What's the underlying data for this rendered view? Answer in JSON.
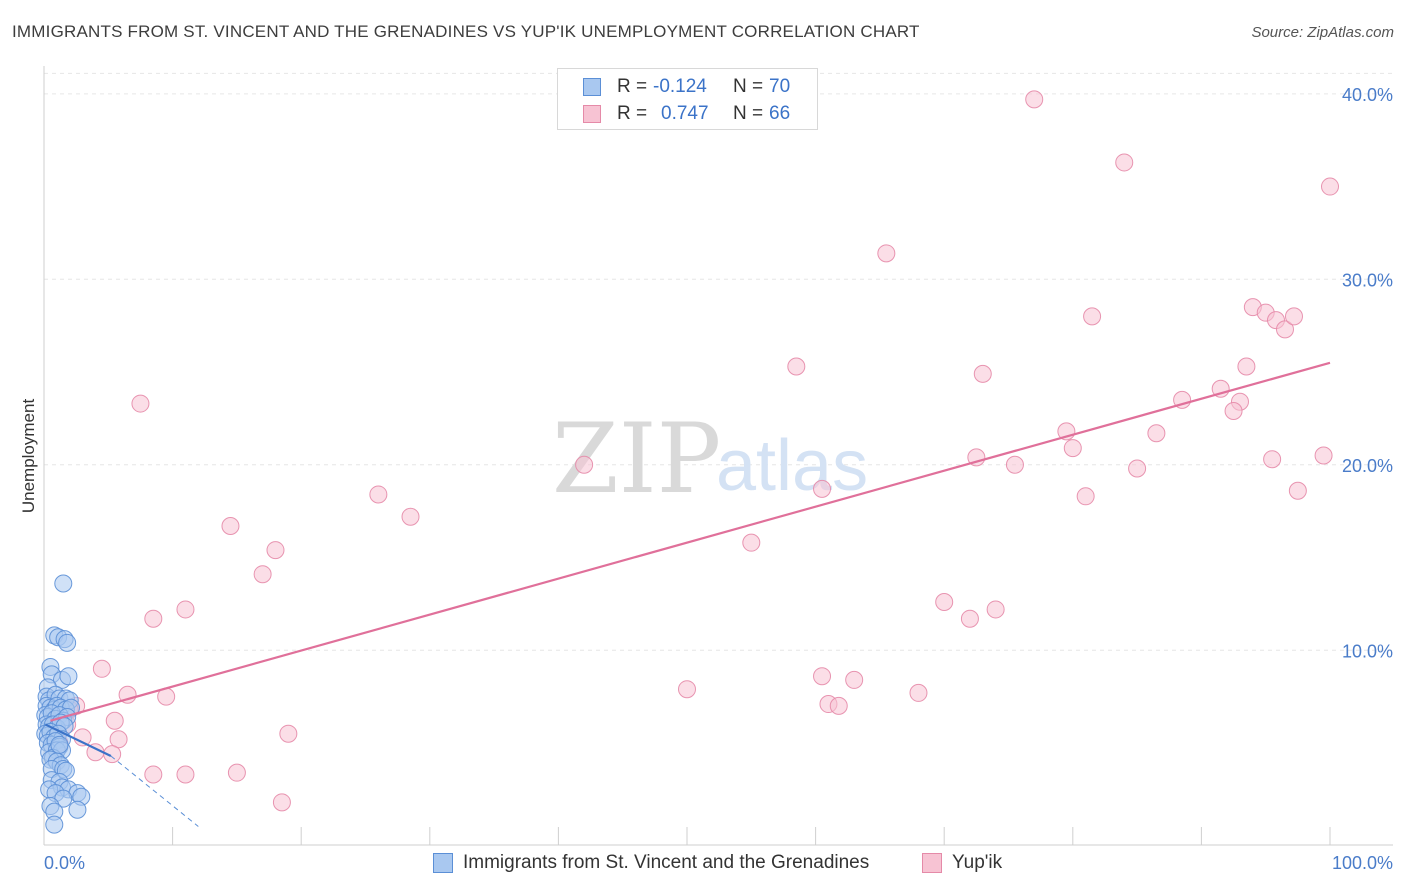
{
  "header": {
    "title": "IMMIGRANTS FROM ST. VINCENT AND THE GRENADINES VS YUP'IK UNEMPLOYMENT CORRELATION CHART",
    "source": "Source: ZipAtlas.com"
  },
  "watermark": {
    "part1": "ZIP",
    "part2": "atlas"
  },
  "legend": {
    "series1": {
      "r_label": "R =",
      "r_value": "-0.124",
      "n_label": "N =",
      "n_value": "70"
    },
    "series2": {
      "r_label": "R =",
      "r_value": "0.747",
      "n_label": "N =",
      "n_value": "66"
    }
  },
  "colors": {
    "blue_fill": "#a9c8f0",
    "blue_stroke": "#5b8fd6",
    "blue_line": "#3b73c8",
    "pink_fill": "#f7c3d3",
    "pink_stroke": "#e58aa8",
    "pink_line": "#e0709a",
    "grid": "#e6e6e6",
    "axis_text": "#4a7cc9"
  },
  "chart_data": {
    "type": "scatter",
    "title": "IMMIGRANTS FROM ST. VINCENT AND THE GRENADINES VS YUP'IK UNEMPLOYMENT CORRELATION CHART",
    "xlabel": "",
    "ylabel": "Unemployment",
    "xlim": [
      0,
      100
    ],
    "ylim": [
      -0.5,
      41.5
    ],
    "x_tick_labels": {
      "left": "0.0%",
      "right": "100.0%"
    },
    "y_ticks": [
      {
        "value": 10,
        "label": "10.0%"
      },
      {
        "value": 20,
        "label": "20.0%"
      },
      {
        "value": 30,
        "label": "30.0%"
      },
      {
        "value": 40,
        "label": "40.0%"
      }
    ],
    "series": [
      {
        "name": "Immigrants from St. Vincent and the Grenadines",
        "color": "blue",
        "trend": {
          "x0": 0.1,
          "y0": 6.0,
          "x1": 5.2,
          "y1": 4.3,
          "dash_to_x": 12.0,
          "dash_to_y": 0.5
        },
        "points": [
          [
            1.5,
            13.6
          ],
          [
            0.8,
            10.8
          ],
          [
            1.1,
            10.7
          ],
          [
            1.6,
            10.6
          ],
          [
            1.8,
            10.4
          ],
          [
            0.5,
            9.1
          ],
          [
            0.6,
            8.7
          ],
          [
            1.4,
            8.4
          ],
          [
            1.9,
            8.6
          ],
          [
            0.3,
            8.0
          ],
          [
            0.2,
            7.5
          ],
          [
            0.4,
            7.3
          ],
          [
            0.9,
            7.6
          ],
          [
            1.2,
            7.4
          ],
          [
            1.7,
            7.4
          ],
          [
            2.0,
            7.3
          ],
          [
            0.2,
            7.0
          ],
          [
            0.5,
            6.9
          ],
          [
            0.8,
            6.8
          ],
          [
            1.0,
            7.0
          ],
          [
            1.3,
            6.9
          ],
          [
            1.7,
            6.8
          ],
          [
            2.1,
            6.9
          ],
          [
            0.1,
            6.5
          ],
          [
            0.3,
            6.4
          ],
          [
            0.6,
            6.6
          ],
          [
            0.9,
            6.3
          ],
          [
            1.2,
            6.5
          ],
          [
            1.5,
            6.2
          ],
          [
            1.8,
            6.4
          ],
          [
            0.2,
            6.0
          ],
          [
            0.4,
            5.9
          ],
          [
            0.7,
            6.0
          ],
          [
            1.0,
            5.8
          ],
          [
            1.3,
            6.1
          ],
          [
            1.6,
            5.9
          ],
          [
            0.1,
            5.5
          ],
          [
            0.3,
            5.4
          ],
          [
            0.5,
            5.6
          ],
          [
            0.8,
            5.3
          ],
          [
            1.1,
            5.5
          ],
          [
            1.4,
            5.2
          ],
          [
            0.3,
            5.0
          ],
          [
            0.6,
            4.9
          ],
          [
            0.9,
            5.1
          ],
          [
            1.2,
            4.8
          ],
          [
            0.4,
            4.5
          ],
          [
            1.0,
            4.6
          ],
          [
            1.4,
            4.6
          ],
          [
            0.7,
            4.2
          ],
          [
            0.5,
            4.1
          ],
          [
            1.0,
            4.0
          ],
          [
            1.3,
            3.8
          ],
          [
            0.6,
            3.6
          ],
          [
            1.5,
            3.6
          ],
          [
            1.7,
            3.5
          ],
          [
            0.6,
            3.0
          ],
          [
            1.2,
            2.9
          ],
          [
            1.4,
            2.6
          ],
          [
            0.4,
            2.5
          ],
          [
            1.9,
            2.5
          ],
          [
            0.9,
            2.3
          ],
          [
            2.6,
            2.3
          ],
          [
            2.9,
            2.1
          ],
          [
            1.5,
            2.0
          ],
          [
            0.5,
            1.6
          ],
          [
            0.8,
            1.3
          ],
          [
            2.6,
            1.4
          ],
          [
            0.8,
            0.6
          ],
          [
            1.2,
            4.9
          ]
        ]
      },
      {
        "name": "Yup'ik",
        "color": "pink",
        "trend": {
          "x0": 0.5,
          "y0": 6.2,
          "x1": 100.0,
          "y1": 25.5
        },
        "points": [
          [
            77.0,
            39.7
          ],
          [
            84.0,
            36.3
          ],
          [
            100.0,
            35.0
          ],
          [
            65.5,
            31.4
          ],
          [
            81.5,
            28.0
          ],
          [
            94.0,
            28.5
          ],
          [
            95.0,
            28.2
          ],
          [
            95.8,
            27.8
          ],
          [
            96.5,
            27.3
          ],
          [
            97.2,
            28.0
          ],
          [
            58.5,
            25.3
          ],
          [
            73.0,
            24.9
          ],
          [
            93.5,
            25.3
          ],
          [
            91.5,
            24.1
          ],
          [
            88.5,
            23.5
          ],
          [
            93.0,
            23.4
          ],
          [
            7.5,
            23.3
          ],
          [
            92.5,
            22.9
          ],
          [
            79.5,
            21.8
          ],
          [
            86.5,
            21.7
          ],
          [
            80.0,
            20.9
          ],
          [
            72.5,
            20.4
          ],
          [
            75.5,
            20.0
          ],
          [
            85.0,
            19.8
          ],
          [
            95.5,
            20.3
          ],
          [
            99.5,
            20.5
          ],
          [
            42.0,
            20.0
          ],
          [
            60.5,
            18.7
          ],
          [
            97.5,
            18.6
          ],
          [
            81.0,
            18.3
          ],
          [
            26.0,
            18.4
          ],
          [
            28.5,
            17.2
          ],
          [
            14.5,
            16.7
          ],
          [
            55.0,
            15.8
          ],
          [
            18.0,
            15.4
          ],
          [
            17.0,
            14.1
          ],
          [
            70.0,
            12.6
          ],
          [
            74.0,
            12.2
          ],
          [
            11.0,
            12.2
          ],
          [
            8.5,
            11.7
          ],
          [
            72.0,
            11.7
          ],
          [
            4.5,
            9.0
          ],
          [
            60.5,
            8.6
          ],
          [
            63.0,
            8.4
          ],
          [
            50.0,
            7.9
          ],
          [
            6.5,
            7.6
          ],
          [
            9.5,
            7.5
          ],
          [
            68.0,
            7.7
          ],
          [
            61.0,
            7.1
          ],
          [
            61.8,
            7.0
          ],
          [
            2.5,
            7.0
          ],
          [
            2.0,
            6.8
          ],
          [
            5.5,
            6.2
          ],
          [
            1.8,
            6.0
          ],
          [
            19.0,
            5.5
          ],
          [
            3.0,
            5.3
          ],
          [
            5.8,
            5.2
          ],
          [
            4.0,
            4.5
          ],
          [
            5.3,
            4.4
          ],
          [
            1.0,
            5.7
          ],
          [
            8.5,
            3.3
          ],
          [
            11.0,
            3.3
          ],
          [
            15.0,
            3.4
          ],
          [
            18.5,
            1.8
          ],
          [
            1.2,
            5.0
          ],
          [
            0.8,
            6.4
          ]
        ]
      }
    ]
  },
  "bottom_legend": {
    "series1_label": "Immigrants from St. Vincent and the Grenadines",
    "series2_label": "Yup'ik"
  }
}
